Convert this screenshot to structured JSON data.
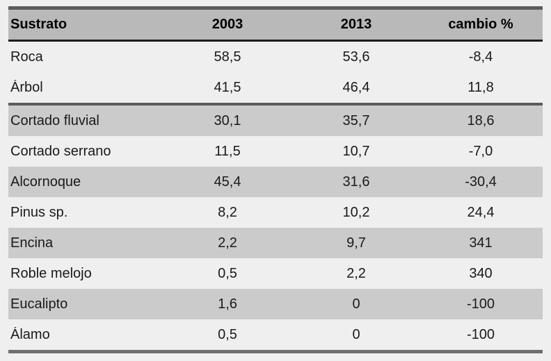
{
  "table": {
    "header": [
      "Sustrato",
      "2003",
      "2013",
      "cambio %"
    ],
    "rows": [
      {
        "cells": [
          "Roca",
          "58,5",
          "53,6",
          "-8,4"
        ]
      },
      {
        "cells": [
          "Árbol",
          "41,5",
          "46,4",
          "11,8"
        ]
      },
      {
        "cells": [
          "Cortado fluvial",
          "30,1",
          "35,7",
          "18,6"
        ]
      },
      {
        "cells": [
          "Cortado serrano",
          "11,5",
          "10,7",
          "-7,0"
        ]
      },
      {
        "cells": [
          "Alcornoque",
          "45,4",
          "31,6",
          "-30,4"
        ]
      },
      {
        "cells": [
          "Pinus sp.",
          "8,2",
          "10,2",
          "24,4"
        ]
      },
      {
        "cells": [
          "Encina",
          "2,2",
          "9,7",
          "341"
        ]
      },
      {
        "cells": [
          "Roble melojo",
          "0,5",
          "2,2",
          "340"
        ]
      },
      {
        "cells": [
          "Eucalipto",
          "1,6",
          "0",
          "-100"
        ]
      },
      {
        "cells": [
          "Álamo",
          "0,5",
          "0",
          "-100"
        ]
      }
    ]
  },
  "chart_data": {
    "type": "table",
    "title": "",
    "columns": [
      "Sustrato",
      "2003",
      "2013",
      "cambio %"
    ],
    "categories": [
      "Roca",
      "Árbol",
      "Cortado fluvial",
      "Cortado serrano",
      "Alcornoque",
      "Pinus sp.",
      "Encina",
      "Roble melojo",
      "Eucalipto",
      "Álamo"
    ],
    "series": [
      {
        "name": "2003",
        "values": [
          58.5,
          41.5,
          30.1,
          11.5,
          45.4,
          8.2,
          2.2,
          0.5,
          1.6,
          0.5
        ]
      },
      {
        "name": "2013",
        "values": [
          53.6,
          46.4,
          35.7,
          10.7,
          31.6,
          10.2,
          9.7,
          2.2,
          0,
          0
        ]
      },
      {
        "name": "cambio %",
        "values": [
          -8.4,
          11.8,
          18.6,
          -7.0,
          -30.4,
          24.4,
          341,
          340,
          -100,
          -100
        ]
      }
    ],
    "layout_hints": {
      "shaded_row_indices": [
        2,
        4,
        6,
        8
      ],
      "thick_rule_after_row_index": 1,
      "decimal_separator": ","
    }
  },
  "colors": {
    "page_background": "#efefef",
    "header_background": "#b9b9b9",
    "shaded_row_background": "#cbcbcb",
    "light_row_background": "#efefef",
    "rule_dark": "#1b1b1b",
    "rule_gray": "#5b5b5b",
    "text": "#1a1a1a"
  }
}
